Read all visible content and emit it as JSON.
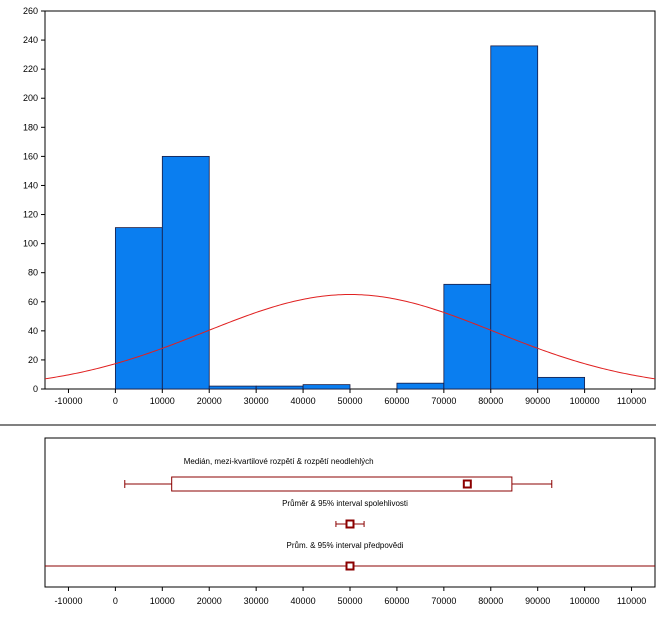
{
  "chart_data": [
    {
      "type": "bar",
      "subtype": "histogram",
      "bin_width": 10000,
      "bins": [
        {
          "x0": 0,
          "x1": 10000,
          "count": 111
        },
        {
          "x0": 10000,
          "x1": 20000,
          "count": 160
        },
        {
          "x0": 20000,
          "x1": 30000,
          "count": 2
        },
        {
          "x0": 30000,
          "x1": 40000,
          "count": 2
        },
        {
          "x0": 40000,
          "x1": 50000,
          "count": 3
        },
        {
          "x0": 50000,
          "x1": 60000,
          "count": 0
        },
        {
          "x0": 60000,
          "x1": 70000,
          "count": 4
        },
        {
          "x0": 70000,
          "x1": 80000,
          "count": 72
        },
        {
          "x0": 80000,
          "x1": 90000,
          "count": 236
        },
        {
          "x0": 90000,
          "x1": 100000,
          "count": 8
        }
      ],
      "normal_curve": {
        "mean": 50000,
        "sd": 30800,
        "peak": 65,
        "color": "#e02020"
      },
      "xlim": [
        -15000,
        115000
      ],
      "ylim": [
        0,
        260
      ],
      "xticks": [
        -10000,
        0,
        10000,
        20000,
        30000,
        40000,
        50000,
        60000,
        70000,
        80000,
        90000,
        100000,
        110000
      ],
      "yticks": [
        0,
        20,
        40,
        60,
        80,
        100,
        120,
        140,
        160,
        180,
        200,
        220,
        240,
        260
      ],
      "bar_color": "#0a7ef0",
      "title": "",
      "xlabel": "",
      "ylabel": ""
    },
    {
      "type": "box",
      "xlim": [
        -15000,
        115000
      ],
      "xticks": [
        -10000,
        0,
        10000,
        20000,
        30000,
        40000,
        50000,
        60000,
        70000,
        80000,
        90000,
        100000,
        110000
      ],
      "color": "#8b0000",
      "rows": [
        {
          "label": "Medián, mezi-kvartilové rozpětí & rozpětí neodlehlých",
          "kind": "box",
          "whisker_low": 2000,
          "q1": 12000,
          "median": 75000,
          "q3": 84500,
          "whisker_high": 93000
        },
        {
          "label": "Průměr & 95% interval spolehlivosti",
          "kind": "interval",
          "center": 50000,
          "low": 47000,
          "high": 53000
        },
        {
          "label": "Prům. & 95% interval předpovědi",
          "kind": "interval",
          "center": 50000,
          "low": -15000,
          "high": 115000
        }
      ]
    }
  ]
}
